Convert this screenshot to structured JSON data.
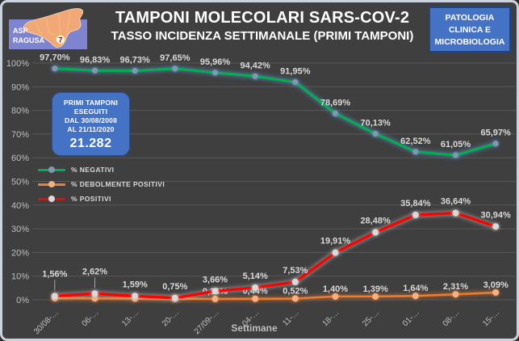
{
  "logo": {
    "line1": "ASP",
    "line2": "RAGUSA",
    "badge": "7"
  },
  "header": {
    "title": "TAMPONI MOLECOLARI SARS-COV-2",
    "subtitle": "TASSO INCIDENZA SETTIMANALE (PRIMI TAMPONI)"
  },
  "dept_box": {
    "lines": [
      "PATOLOGIA",
      "CLINICA E",
      "MICROBIOLOGIA"
    ]
  },
  "info_box": {
    "lines": [
      "PRIMI TAMPONI",
      "ESEGUITI",
      "DAL 30/08/2008",
      "AL 21/11/2020"
    ],
    "total": "21.282"
  },
  "colors": {
    "background": "#3F3F3F",
    "frame_border": "#CDD3DE",
    "grid": "#595959",
    "axis_text": "#BFBFBF",
    "data_label": "#D9D9D9",
    "title_text": "#FFFFFF",
    "box_blue": "#4472C4",
    "leader_line": "#A6A6A6"
  },
  "chart_data": {
    "type": "line",
    "title": "TAMPONI MOLECOLARI SARS-COV-2",
    "subtitle": "TASSO INCIDENZA SETTIMANALE (PRIMI TAMPONI)",
    "xlabel": "Settimane",
    "ylim": [
      0,
      100
    ],
    "ytick_step": 10,
    "yticks": [
      "0%",
      "10%",
      "20%",
      "30%",
      "40%",
      "50%",
      "60%",
      "70%",
      "80%",
      "90%",
      "100%"
    ],
    "grid": true,
    "legend_position": "upper-left-inside",
    "categories": [
      "30/08-…",
      "06-…",
      "13-…",
      "20-…",
      "27/09-…",
      "04-…",
      "11-…",
      "18-…",
      "25-…",
      "01-…",
      "08-…",
      "15-…"
    ],
    "series": [
      {
        "name": "% NEGATIVI",
        "color": "#00B050",
        "marker_color": "#8497B0",
        "glow": "#5B9BD5",
        "values": [
          97.7,
          96.83,
          96.73,
          97.65,
          95.96,
          94.42,
          91.95,
          78.69,
          70.13,
          62.52,
          61.05,
          65.97
        ],
        "labels": [
          "97,70%",
          "96,83%",
          "96,73%",
          "97,65%",
          "95,96%",
          "94,42%",
          "91,95%",
          "78,69%",
          "70,13%",
          "62,52%",
          "61,05%",
          "65,97%"
        ]
      },
      {
        "name": "% DEBOLMENTE POSITIVI",
        "color": "#ED7D31",
        "marker_color": "#F4B183",
        "glow": "#ED7D31",
        "values": [
          0.7,
          0.6,
          0.5,
          0.45,
          0.38,
          0.44,
          0.52,
          1.4,
          1.39,
          1.64,
          2.31,
          3.09
        ],
        "labels": [
          null,
          null,
          null,
          null,
          "0,38%",
          "0,44%",
          "0,52%",
          "1,40%",
          "1,39%",
          "1,64%",
          "2,31%",
          "3,09%"
        ]
      },
      {
        "name": "% POSITIVI",
        "color": "#FF0000",
        "marker_color": "#D9D9D9",
        "glow": "#BFBFBF",
        "values": [
          1.56,
          2.62,
          1.59,
          0.75,
          3.66,
          5.14,
          7.53,
          19.91,
          28.48,
          35.84,
          36.64,
          30.94
        ],
        "labels": [
          "1,56%",
          "2,62%",
          "1,59%",
          "0,75%",
          "3,66%",
          "5,14%",
          "7,53%",
          "19,91%",
          "28,48%",
          "35,84%",
          "36,64%",
          "30,94%"
        ],
        "label_leader_indexes": [
          0,
          1
        ]
      }
    ]
  }
}
